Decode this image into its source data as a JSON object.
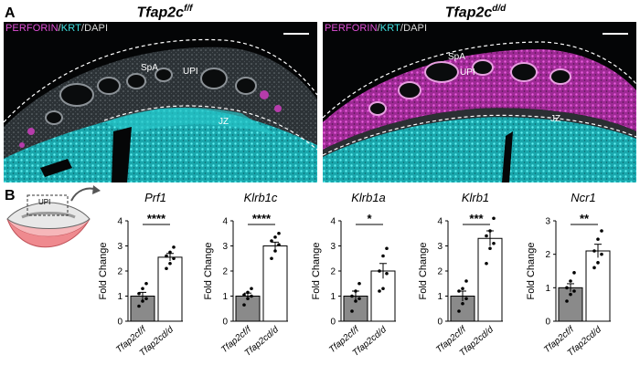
{
  "panel_a": {
    "letter": "A",
    "images": [
      {
        "genotype": "Tfap2c",
        "genotype_sup": "f/f",
        "stain": {
          "perforin": "PERFORIN",
          "krt": "KRT",
          "dapi": "DAPI",
          "sep": "/"
        },
        "labels": {
          "spa": "SpA",
          "upi": "UPI",
          "jz": "JZ"
        }
      },
      {
        "genotype": "Tfap2c",
        "genotype_sup": "d/d",
        "stain": {
          "perforin": "PERFORIN",
          "krt": "KRT",
          "dapi": "DAPI",
          "sep": "/"
        },
        "labels": {
          "spa": "SpA",
          "upi": "UPI",
          "jz": "JZ"
        }
      }
    ],
    "colors": {
      "perforin": "#e04fd6",
      "krt": "#3fe0e0",
      "dapi": "#d9d9d9"
    }
  },
  "panel_b": {
    "letter": "B",
    "schematic_label": "UPI"
  },
  "chart_data": [
    {
      "type": "bar",
      "title": "Prf1",
      "ylabel": "Fold Change",
      "ylim": [
        0,
        4
      ],
      "yticks": [
        "0",
        "1",
        "2",
        "3",
        "4"
      ],
      "categories": [
        "Tfap2cf/f",
        "Tfap2cd/d"
      ],
      "values": [
        1.0,
        2.55
      ],
      "errors": [
        0.15,
        0.15
      ],
      "points": [
        [
          0.6,
          0.8,
          0.9,
          1.1,
          1.3,
          1.5
        ],
        [
          2.1,
          2.3,
          2.5,
          2.6,
          2.75,
          2.95
        ]
      ],
      "significance": "****"
    },
    {
      "type": "bar",
      "title": "Klrb1c",
      "ylabel": "Fold Change",
      "ylim": [
        0,
        4
      ],
      "yticks": [
        "0",
        "1",
        "2",
        "3",
        "4"
      ],
      "categories": [
        "Tfap2cf/f",
        "Tfap2cd/d"
      ],
      "values": [
        1.0,
        3.0
      ],
      "errors": [
        0.12,
        0.15
      ],
      "points": [
        [
          0.65,
          0.9,
          1.0,
          1.05,
          1.15,
          1.3
        ],
        [
          2.5,
          2.8,
          3.05,
          3.2,
          3.35,
          3.5
        ]
      ],
      "significance": "****"
    },
    {
      "type": "bar",
      "title": "Klrb1a",
      "ylabel": "Fold Change",
      "ylim": [
        0,
        4
      ],
      "yticks": [
        "0",
        "1",
        "2",
        "3",
        "4"
      ],
      "categories": [
        "Tfap2cf/f",
        "Tfap2cd/d"
      ],
      "values": [
        1.0,
        2.0
      ],
      "errors": [
        0.2,
        0.3
      ],
      "points": [
        [
          0.4,
          0.8,
          0.9,
          1.0,
          1.2,
          1.5
        ],
        [
          1.2,
          1.3,
          1.9,
          2.0,
          2.6,
          2.9
        ]
      ],
      "significance": "*"
    },
    {
      "type": "bar",
      "title": "Klrb1",
      "ylabel": "Fold Change",
      "ylim": [
        0,
        4
      ],
      "yticks": [
        "0",
        "1",
        "2",
        "3",
        "4"
      ],
      "categories": [
        "Tfap2cf/f",
        "Tfap2cd/d"
      ],
      "values": [
        1.0,
        3.3
      ],
      "errors": [
        0.2,
        0.3
      ],
      "points": [
        [
          0.4,
          0.7,
          0.9,
          1.2,
          1.3,
          1.6
        ],
        [
          2.3,
          2.9,
          3.1,
          3.4,
          3.6,
          4.1
        ]
      ],
      "significance": "***"
    },
    {
      "type": "bar",
      "title": "Ncr1",
      "ylabel": "Fold Change",
      "ylim": [
        0,
        3
      ],
      "yticks": [
        "0",
        "1",
        "2",
        "3"
      ],
      "categories": [
        "Tfap2cf/f",
        "Tfap2cd/d"
      ],
      "values": [
        1.0,
        2.1
      ],
      "errors": [
        0.12,
        0.2
      ],
      "points": [
        [
          0.6,
          0.8,
          0.9,
          1.0,
          1.2,
          1.45
        ],
        [
          1.6,
          1.75,
          2.0,
          2.1,
          2.45,
          2.7
        ]
      ],
      "significance": "**"
    }
  ]
}
